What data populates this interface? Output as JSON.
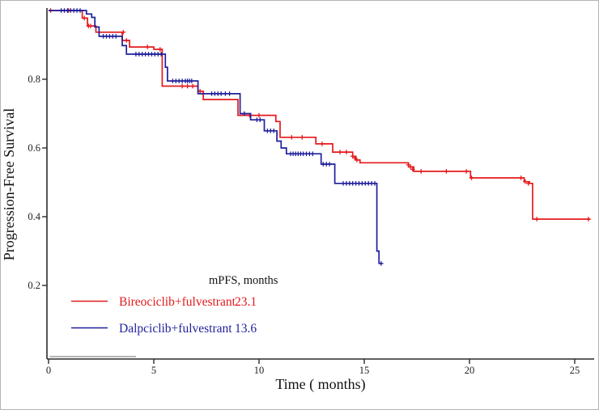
{
  "figure": {
    "y_axis": {
      "label": "Progression-Free Survival",
      "tick_labels": [
        "0.2",
        "0.4",
        "0.6",
        "0.8"
      ]
    },
    "x_axis": {
      "label": "Time ( months)",
      "tick_labels": [
        "0",
        "5",
        "10",
        "15",
        "20",
        "25"
      ]
    },
    "legend": {
      "header": "mPFS, months",
      "items": [
        {
          "label": "Bireociclib+fulvestrant",
          "value": "23.1",
          "color": "#e41a1c"
        },
        {
          "label": "Dalpciclib+fulvestrant",
          "value": "13.6",
          "color": "#1f1f9c"
        }
      ]
    },
    "colors": {
      "red_series": "#e41a1c",
      "blue_series": "#1f1f9c",
      "axis": "#2b2b2b",
      "artifact_line": "#9e9e9e",
      "border": "#b3b3b3"
    }
  },
  "chart_data": {
    "type": "line",
    "subtype": "kaplan-meier-step",
    "title": "",
    "xlabel": "Time ( months)",
    "ylabel": "Progression-Free Survival",
    "xlim": [
      0,
      26
    ],
    "ylim": [
      0,
      1.0
    ],
    "x_ticks": [
      0,
      5,
      10,
      15,
      20,
      25
    ],
    "y_ticks": [
      0.2,
      0.4,
      0.6,
      0.8
    ],
    "grid": false,
    "legend_position": "inside-bottom-left",
    "series": [
      {
        "name": "Bireociclib+fulvestrant",
        "median_pfs_months": 23.1,
        "color": "#e41a1c",
        "steps": [
          [
            0,
            1.0
          ],
          [
            1.6,
            0.978
          ],
          [
            1.85,
            0.955
          ],
          [
            2.25,
            0.937
          ],
          [
            3.5,
            0.913
          ],
          [
            3.85,
            0.894
          ],
          [
            5.0,
            0.887
          ],
          [
            5.4,
            0.78
          ],
          [
            7.1,
            0.765
          ],
          [
            7.35,
            0.741
          ],
          [
            9.0,
            0.695
          ],
          [
            10.8,
            0.677
          ],
          [
            11.0,
            0.631
          ],
          [
            12.7,
            0.612
          ],
          [
            13.5,
            0.588
          ],
          [
            14.45,
            0.576
          ],
          [
            14.6,
            0.565
          ],
          [
            14.8,
            0.557
          ],
          [
            17.1,
            0.545
          ],
          [
            17.35,
            0.532
          ],
          [
            20.05,
            0.513
          ],
          [
            22.6,
            0.502
          ],
          [
            22.85,
            0.497
          ],
          [
            23.0,
            0.393
          ]
        ],
        "end_t": 25.75,
        "censors": [
          [
            0.1,
            1.0
          ],
          [
            0.95,
            1.0
          ],
          [
            1.7,
            0.978
          ],
          [
            1.9,
            0.955
          ],
          [
            2.0,
            0.955
          ],
          [
            3.55,
            0.937
          ],
          [
            3.7,
            0.913
          ],
          [
            4.7,
            0.894
          ],
          [
            5.3,
            0.887
          ],
          [
            6.35,
            0.78
          ],
          [
            6.6,
            0.78
          ],
          [
            6.85,
            0.78
          ],
          [
            7.2,
            0.765
          ],
          [
            9.55,
            0.695
          ],
          [
            10.0,
            0.695
          ],
          [
            11.55,
            0.631
          ],
          [
            12.05,
            0.631
          ],
          [
            13.0,
            0.612
          ],
          [
            13.85,
            0.588
          ],
          [
            14.15,
            0.588
          ],
          [
            14.45,
            0.576
          ],
          [
            14.55,
            0.571
          ],
          [
            14.65,
            0.565
          ],
          [
            17.1,
            0.551
          ],
          [
            17.2,
            0.545
          ],
          [
            17.3,
            0.538
          ],
          [
            17.7,
            0.532
          ],
          [
            18.9,
            0.532
          ],
          [
            19.85,
            0.532
          ],
          [
            20.1,
            0.513
          ],
          [
            22.45,
            0.513
          ],
          [
            22.65,
            0.502
          ],
          [
            22.8,
            0.497
          ],
          [
            23.2,
            0.393
          ],
          [
            25.65,
            0.393
          ]
        ]
      },
      {
        "name": "Dalpciclib+fulvestrant",
        "median_pfs_months": 13.6,
        "color": "#1f1f9c",
        "steps": [
          [
            0,
            1.0
          ],
          [
            1.8,
            0.99
          ],
          [
            2.05,
            0.98
          ],
          [
            2.2,
            0.952
          ],
          [
            2.4,
            0.925
          ],
          [
            3.5,
            0.898
          ],
          [
            3.7,
            0.873
          ],
          [
            5.55,
            0.835
          ],
          [
            5.65,
            0.795
          ],
          [
            7.1,
            0.758
          ],
          [
            9.1,
            0.7
          ],
          [
            9.6,
            0.682
          ],
          [
            10.25,
            0.65
          ],
          [
            10.85,
            0.62
          ],
          [
            11.05,
            0.6
          ],
          [
            11.3,
            0.583
          ],
          [
            12.95,
            0.553
          ],
          [
            13.6,
            0.497
          ],
          [
            15.6,
            0.3
          ],
          [
            15.7,
            0.264
          ]
        ],
        "end_t": 15.85,
        "censors": [
          [
            0.6,
            1.0
          ],
          [
            0.75,
            1.0
          ],
          [
            0.9,
            1.0
          ],
          [
            1.05,
            1.0
          ],
          [
            1.2,
            1.0
          ],
          [
            1.35,
            1.0
          ],
          [
            1.5,
            1.0
          ],
          [
            2.6,
            0.925
          ],
          [
            2.75,
            0.925
          ],
          [
            2.9,
            0.925
          ],
          [
            3.05,
            0.925
          ],
          [
            3.2,
            0.925
          ],
          [
            4.15,
            0.873
          ],
          [
            4.3,
            0.873
          ],
          [
            4.45,
            0.873
          ],
          [
            4.6,
            0.873
          ],
          [
            4.75,
            0.873
          ],
          [
            4.9,
            0.873
          ],
          [
            5.05,
            0.873
          ],
          [
            5.2,
            0.873
          ],
          [
            5.35,
            0.873
          ],
          [
            5.9,
            0.795
          ],
          [
            6.05,
            0.795
          ],
          [
            6.2,
            0.795
          ],
          [
            6.35,
            0.795
          ],
          [
            6.5,
            0.795
          ],
          [
            6.6,
            0.795
          ],
          [
            6.7,
            0.795
          ],
          [
            6.8,
            0.795
          ],
          [
            7.75,
            0.758
          ],
          [
            7.9,
            0.758
          ],
          [
            8.05,
            0.758
          ],
          [
            8.2,
            0.758
          ],
          [
            8.4,
            0.758
          ],
          [
            8.6,
            0.758
          ],
          [
            9.3,
            0.7
          ],
          [
            9.9,
            0.682
          ],
          [
            10.05,
            0.682
          ],
          [
            10.4,
            0.65
          ],
          [
            10.55,
            0.65
          ],
          [
            10.7,
            0.65
          ],
          [
            11.5,
            0.583
          ],
          [
            11.62,
            0.583
          ],
          [
            11.74,
            0.583
          ],
          [
            11.86,
            0.583
          ],
          [
            11.98,
            0.583
          ],
          [
            12.1,
            0.583
          ],
          [
            12.25,
            0.583
          ],
          [
            12.4,
            0.583
          ],
          [
            12.55,
            0.583
          ],
          [
            13.05,
            0.553
          ],
          [
            13.2,
            0.553
          ],
          [
            13.35,
            0.553
          ],
          [
            14.0,
            0.497
          ],
          [
            14.15,
            0.497
          ],
          [
            14.3,
            0.497
          ],
          [
            14.45,
            0.497
          ],
          [
            14.6,
            0.497
          ],
          [
            14.75,
            0.497
          ],
          [
            14.9,
            0.497
          ],
          [
            15.05,
            0.497
          ],
          [
            15.2,
            0.497
          ],
          [
            15.35,
            0.497
          ],
          [
            15.5,
            0.497
          ],
          [
            15.8,
            0.264
          ]
        ]
      }
    ],
    "annotations": [
      {
        "type": "gray-baseline-segment",
        "from_t": 0.05,
        "to_t": 4.15,
        "y_value": -0.007
      }
    ]
  }
}
